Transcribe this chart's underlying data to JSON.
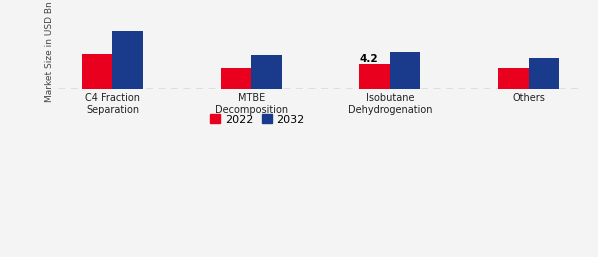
{
  "categories": [
    "C4 Fraction\nSeparation",
    "MTBE\nDecomposition",
    "Isobutane\nDehydrogenation",
    "Others"
  ],
  "values_2022": [
    5.5,
    3.2,
    3.8,
    3.2
  ],
  "values_2032": [
    9.0,
    5.2,
    5.8,
    4.8
  ],
  "color_2022": "#e8001e",
  "color_2032": "#1a3a8c",
  "bar_width": 0.22,
  "annotation_text": "4.2",
  "annotation_category_index": 2,
  "ylabel": "Market Size in USD Bn",
  "background_color": "#f4f4f4",
  "legend_labels": [
    "2022",
    "2032"
  ],
  "ylim": [
    0,
    11.5
  ],
  "dashed_line_color": "#888888"
}
